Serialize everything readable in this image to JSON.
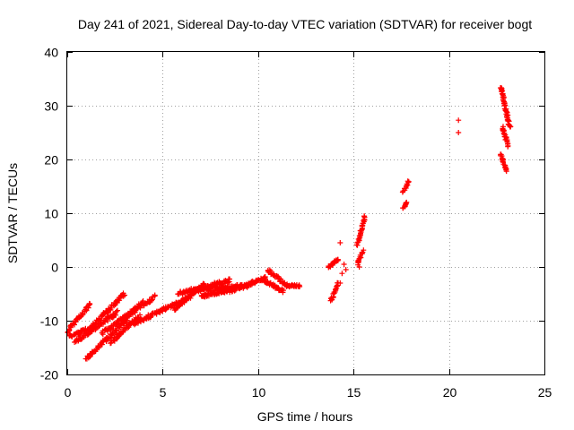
{
  "chart_data": {
    "type": "scatter",
    "title": "Day 241 of 2021, Sidereal Day-to-day VTEC variation (SDTVAR) for receiver bogt",
    "xlabel": "GPS time / hours",
    "ylabel": "SDTVAR / TECUs",
    "xlim": [
      0,
      25
    ],
    "ylim": [
      -20,
      40
    ],
    "xticks": [
      0,
      5,
      10,
      15,
      20,
      25
    ],
    "yticks": [
      -20,
      -10,
      0,
      10,
      20,
      30,
      40
    ],
    "grid": true,
    "marker": "+",
    "color": "#ff0000",
    "tracks": [
      {
        "name": "track-a",
        "from": [
          0.0,
          -12.0
        ],
        "to": [
          1.2,
          -7.0
        ],
        "n": 40,
        "jitter": 0.6
      },
      {
        "name": "track-b",
        "from": [
          0.1,
          -13.0
        ],
        "to": [
          1.5,
          -11.0
        ],
        "n": 40,
        "jitter": 0.6
      },
      {
        "name": "track-c",
        "from": [
          0.4,
          -14.0
        ],
        "to": [
          2.6,
          -8.5
        ],
        "n": 70,
        "jitter": 0.8
      },
      {
        "name": "track-d",
        "from": [
          1.0,
          -17.0
        ],
        "to": [
          3.2,
          -9.5
        ],
        "n": 70,
        "jitter": 0.7
      },
      {
        "name": "track-e",
        "from": [
          1.2,
          -11.5
        ],
        "to": [
          3.0,
          -5.0
        ],
        "n": 60,
        "jitter": 0.7
      },
      {
        "name": "track-f",
        "from": [
          1.8,
          -12.5
        ],
        "to": [
          4.6,
          -5.5
        ],
        "n": 80,
        "jitter": 0.8
      },
      {
        "name": "track-g",
        "from": [
          2.3,
          -14.0
        ],
        "to": [
          3.8,
          -9.0
        ],
        "n": 50,
        "jitter": 0.6
      },
      {
        "name": "track-h",
        "from": [
          2.8,
          -10.0
        ],
        "to": [
          4.0,
          -6.5
        ],
        "n": 40,
        "jitter": 0.5
      },
      {
        "name": "track-i",
        "from": [
          3.5,
          -10.5
        ],
        "to": [
          6.5,
          -5.5
        ],
        "n": 90,
        "jitter": 0.6
      },
      {
        "name": "track-j",
        "from": [
          5.6,
          -8.0
        ],
        "to": [
          7.2,
          -3.0
        ],
        "n": 50,
        "jitter": 0.6
      },
      {
        "name": "track-k",
        "from": [
          5.8,
          -5.0
        ],
        "to": [
          8.5,
          -2.5
        ],
        "n": 80,
        "jitter": 0.7
      },
      {
        "name": "track-l",
        "from": [
          6.5,
          -4.5
        ],
        "to": [
          9.5,
          -3.5
        ],
        "n": 90,
        "jitter": 0.8
      },
      {
        "name": "track-m",
        "from": [
          7.0,
          -5.5
        ],
        "to": [
          8.8,
          -4.0
        ],
        "n": 60,
        "jitter": 0.6
      },
      {
        "name": "track-n",
        "from": [
          8.5,
          -4.5
        ],
        "to": [
          10.4,
          -2.0
        ],
        "n": 60,
        "jitter": 0.6
      },
      {
        "name": "track-o",
        "from": [
          10.3,
          -2.5
        ],
        "to": [
          11.3,
          -4.5
        ],
        "n": 40,
        "jitter": 0.6
      },
      {
        "name": "track-p",
        "from": [
          10.5,
          -0.5
        ],
        "to": [
          11.5,
          -3.5
        ],
        "n": 30,
        "jitter": 0.6
      },
      {
        "name": "track-q",
        "from": [
          11.5,
          -3.5
        ],
        "to": [
          12.2,
          -3.5
        ],
        "n": 25,
        "jitter": 0.4
      },
      {
        "name": "track-r",
        "from": [
          13.7,
          0.0
        ],
        "to": [
          14.2,
          1.5
        ],
        "n": 25,
        "jitter": 0.5
      },
      {
        "name": "track-s",
        "from": [
          13.8,
          -6.5
        ],
        "to": [
          14.2,
          -3.0
        ],
        "n": 20,
        "jitter": 0.5
      },
      {
        "name": "track-t",
        "from": [
          15.2,
          4.0
        ],
        "to": [
          15.6,
          9.5
        ],
        "n": 30,
        "jitter": 0.5
      },
      {
        "name": "track-u",
        "from": [
          15.2,
          0.5
        ],
        "to": [
          15.5,
          3.0
        ],
        "n": 15,
        "jitter": 0.4
      },
      {
        "name": "track-v",
        "from": [
          17.6,
          11.0
        ],
        "to": [
          17.8,
          12.0
        ],
        "n": 10,
        "jitter": 0.3
      },
      {
        "name": "track-w",
        "from": [
          17.6,
          14.0
        ],
        "to": [
          17.9,
          16.0
        ],
        "n": 12,
        "jitter": 0.3
      },
      {
        "name": "track-x",
        "from": [
          22.7,
          33.5
        ],
        "to": [
          23.2,
          26.0
        ],
        "n": 50,
        "jitter": 0.5
      },
      {
        "name": "track-y",
        "from": [
          22.8,
          26.0
        ],
        "to": [
          23.1,
          22.5
        ],
        "n": 25,
        "jitter": 0.4
      },
      {
        "name": "track-z",
        "from": [
          22.7,
          21.0
        ],
        "to": [
          23.0,
          18.0
        ],
        "n": 20,
        "jitter": 0.4
      }
    ],
    "isolated_points": [
      {
        "x": 14.3,
        "y": 4.5
      },
      {
        "x": 14.4,
        "y": -1.2
      },
      {
        "x": 14.6,
        "y": -0.5
      },
      {
        "x": 14.5,
        "y": 0.5
      },
      {
        "x": 14.3,
        "y": -3.0
      },
      {
        "x": 15.3,
        "y": 0.0
      },
      {
        "x": 20.5,
        "y": 27.3
      },
      {
        "x": 20.5,
        "y": 25.0
      }
    ]
  }
}
